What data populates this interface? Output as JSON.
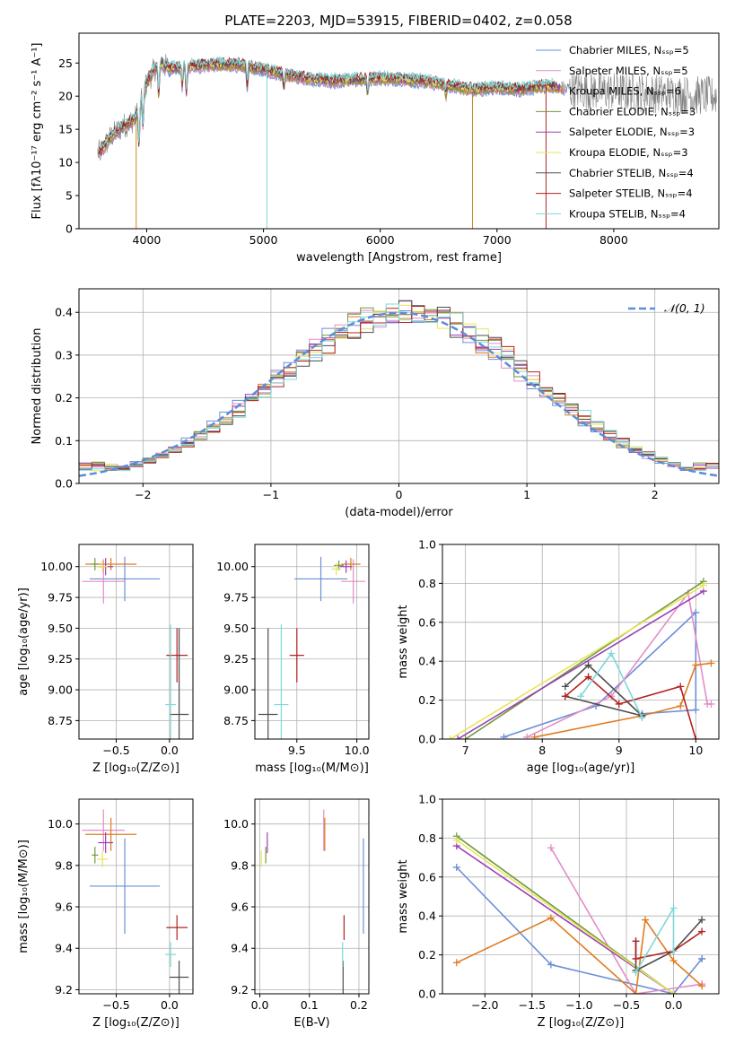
{
  "figure": {
    "title": "PLATE=2203, MJD=53915, FIBERID=0402, z=0.058"
  },
  "chart_data": [
    {
      "id": "spectrum",
      "type": "line",
      "xlabel": "wavelength [Angstrom, rest frame]",
      "ylabel": "Flux [fλ10⁻¹⁷ erg cm⁻² s⁻¹ A⁻¹]",
      "xlim": [
        3420,
        8900
      ],
      "ylim": [
        0,
        29.5
      ],
      "xticks": [
        4000,
        5000,
        6000,
        7000,
        8000
      ],
      "yticks": [
        0,
        5,
        10,
        15,
        20,
        25
      ],
      "grid": false,
      "legend_position": "top-right",
      "legend": [
        {
          "label": "Chabrier MILES, Nₛₛₚ=5",
          "color": "#6a8fd8"
        },
        {
          "label": "Salpeter MILES, Nₛₛₚ=5",
          "color": "#e38dc7"
        },
        {
          "label": "Kroupa MILES, Nₛₛₚ=6",
          "color": "#c58a1d"
        },
        {
          "label": "Chabrier ELODIE, Nₛₛₚ=3",
          "color": "#6f9a3c"
        },
        {
          "label": "Salpeter ELODIE, Nₛₛₚ=3",
          "color": "#9b3fb5"
        },
        {
          "label": "Kroupa ELODIE, Nₛₛₚ=3",
          "color": "#e6e65a"
        },
        {
          "label": "Chabrier STELIB, Nₛₛₚ=4",
          "color": "#4d4d4d"
        },
        {
          "label": "Salpeter STELIB, Nₛₛₚ=4",
          "color": "#b22222"
        },
        {
          "label": "Kroupa STELIB, Nₛₛₚ=4",
          "color": "#7fd8d8"
        }
      ],
      "data_color": "#808080",
      "continuum_knots": {
        "x": [
          3600,
          3700,
          3800,
          3900,
          4000,
          4100,
          4200,
          4400,
          4600,
          4800,
          5000,
          5200,
          5400,
          5600,
          5800,
          6000,
          6200,
          6400,
          6600,
          6800,
          7000,
          7200,
          7400,
          7600
        ],
        "y": [
          11.5,
          14,
          15.5,
          16.5,
          22,
          25,
          24.2,
          24.5,
          24.8,
          24.7,
          24,
          23.2,
          22.6,
          22.3,
          22.5,
          22.7,
          22.5,
          22.2,
          21.6,
          21.0,
          21.3,
          21.0,
          21.6,
          21.2
        ]
      }
    },
    {
      "id": "residual-histogram",
      "type": "line",
      "xlabel": "(data-model)/error",
      "ylabel": "Normed distribution",
      "xlim": [
        -2.5,
        2.5
      ],
      "ylim": [
        0,
        0.455
      ],
      "xticks": [
        -2,
        -1,
        0,
        1,
        2
      ],
      "yticks": [
        0.0,
        0.1,
        0.2,
        0.3,
        0.4
      ],
      "grid": true,
      "legend_position": "top-right",
      "gaussian_label": "𝒩(0, 1)",
      "gaussian_color": "#5b8dd9",
      "bin_width": 0.1,
      "series_colors": [
        "#6a8fd8",
        "#e38dc7",
        "#e07b1f",
        "#6f9a3c",
        "#9b3fb5",
        "#e6e65a",
        "#4d4d4d",
        "#b22222",
        "#7fd8d8"
      ]
    },
    {
      "id": "age-vs-Z",
      "type": "scatter",
      "xlabel": "Z [log₁₀(Z/Z⊙)]",
      "ylabel": "age  [log₁₀(age/yr)]",
      "xlim": [
        -0.85,
        0.22
      ],
      "ylim": [
        8.6,
        10.18
      ],
      "xticks": [
        -0.5,
        0.0
      ],
      "yticks": [
        8.75,
        9.0,
        9.25,
        9.5,
        9.75,
        10.0
      ],
      "grid": true,
      "points": [
        {
          "color": "#6a8fd8",
          "x": -0.42,
          "y": 9.9,
          "xerr": 0.33,
          "yerr": 0.18
        },
        {
          "color": "#e38dc7",
          "x": -0.62,
          "y": 9.88,
          "xerr": 0.2,
          "yerr": 0.18
        },
        {
          "color": "#e07b1f",
          "x": -0.55,
          "y": 10.02,
          "xerr": 0.24,
          "yerr": 0.05
        },
        {
          "color": "#6f9a3c",
          "x": -0.7,
          "y": 10.02,
          "xerr": 0.03,
          "yerr": 0.05
        },
        {
          "color": "#9b3fb5",
          "x": -0.6,
          "y": 10.0,
          "xerr": 0.07,
          "yerr": 0.07
        },
        {
          "color": "#e6e65a",
          "x": -0.63,
          "y": 10.0,
          "xerr": 0.05,
          "yerr": 0.05
        },
        {
          "color": "#4d4d4d",
          "x": 0.09,
          "y": 8.8,
          "xerr": 0.09,
          "yerr": 0.7
        },
        {
          "color": "#b22222",
          "x": 0.07,
          "y": 9.28,
          "xerr": 0.1,
          "yerr": 0.22
        },
        {
          "color": "#7fd8d8",
          "x": 0.01,
          "y": 8.88,
          "xerr": 0.05,
          "yerr": 0.65
        }
      ]
    },
    {
      "id": "age-vs-mass",
      "type": "scatter",
      "xlabel": "mass [log₁₀(M/M⊙)]",
      "ylabel": "",
      "xlim": [
        9.15,
        10.1
      ],
      "ylim": [
        8.6,
        10.18
      ],
      "xticks": [
        9.5,
        10.0
      ],
      "yticks": [
        8.75,
        9.0,
        9.25,
        9.5,
        9.75,
        10.0
      ],
      "grid": true,
      "points": [
        {
          "color": "#6a8fd8",
          "x": 9.7,
          "y": 9.9,
          "xerr": 0.22,
          "yerr": 0.18
        },
        {
          "color": "#e38dc7",
          "x": 9.97,
          "y": 9.88,
          "xerr": 0.1,
          "yerr": 0.18
        },
        {
          "color": "#e07b1f",
          "x": 9.95,
          "y": 10.02,
          "xerr": 0.08,
          "yerr": 0.05
        },
        {
          "color": "#6f9a3c",
          "x": 9.85,
          "y": 10.01,
          "xerr": 0.04,
          "yerr": 0.04
        },
        {
          "color": "#9b3fb5",
          "x": 9.91,
          "y": 10.0,
          "xerr": 0.05,
          "yerr": 0.05
        },
        {
          "color": "#e6e65a",
          "x": 9.83,
          "y": 9.98,
          "xerr": 0.04,
          "yerr": 0.05
        },
        {
          "color": "#4d4d4d",
          "x": 9.26,
          "y": 8.8,
          "xerr": 0.08,
          "yerr": 0.7
        },
        {
          "color": "#b22222",
          "x": 9.5,
          "y": 9.28,
          "xerr": 0.06,
          "yerr": 0.22
        },
        {
          "color": "#7fd8d8",
          "x": 9.37,
          "y": 8.88,
          "xerr": 0.06,
          "yerr": 0.65
        }
      ]
    },
    {
      "id": "mass-weight-vs-age",
      "type": "line",
      "xlabel": "age  [log₁₀(age/yr)]",
      "ylabel": "mass weight",
      "xlim": [
        6.7,
        10.3
      ],
      "ylim": [
        0,
        1.0
      ],
      "xticks": [
        7,
        8,
        9,
        10
      ],
      "yticks": [
        0.0,
        0.2,
        0.4,
        0.6,
        0.8,
        1.0
      ],
      "grid": true,
      "series": [
        {
          "color": "#6a8fd8",
          "x": [
            7.5,
            8.7,
            10.0,
            10.0,
            9.3
          ],
          "y": [
            0.01,
            0.17,
            0.65,
            0.15,
            0.13
          ]
        },
        {
          "color": "#e38dc7",
          "x": [
            7.8,
            8.9,
            9.9,
            10.15,
            10.2
          ],
          "y": [
            0.01,
            0.22,
            0.75,
            0.18,
            0.18
          ]
        },
        {
          "color": "#e07b1f",
          "x": [
            7.9,
            9.3,
            9.8,
            10.0,
            10.2
          ],
          "y": [
            0.01,
            0.12,
            0.17,
            0.38,
            0.39
          ]
        },
        {
          "color": "#6f9a3c",
          "x": [
            7.0,
            10.1
          ],
          "y": [
            0.0,
            0.81
          ]
        },
        {
          "color": "#9b3fb5",
          "x": [
            6.9,
            10.1
          ],
          "y": [
            0.0,
            0.76
          ]
        },
        {
          "color": "#e6e65a",
          "x": [
            6.8,
            10.1
          ],
          "y": [
            0.0,
            0.79
          ]
        },
        {
          "color": "#4d4d4d",
          "x": [
            8.3,
            8.6,
            9.3,
            9.3,
            8.3
          ],
          "y": [
            0.27,
            0.38,
            0.12,
            0.12,
            0.22
          ]
        },
        {
          "color": "#b22222",
          "x": [
            8.3,
            8.6,
            9.0,
            9.8,
            10.0
          ],
          "y": [
            0.22,
            0.32,
            0.18,
            0.27,
            0.0
          ]
        },
        {
          "color": "#7fd8d8",
          "x": [
            8.5,
            8.9,
            9.3
          ],
          "y": [
            0.22,
            0.44,
            0.11
          ]
        }
      ]
    },
    {
      "id": "mass-vs-Z",
      "type": "scatter",
      "xlabel": "Z [log₁₀(Z/Z⊙)]",
      "ylabel": "mass [log₁₀(M/M⊙)]",
      "xlim": [
        -0.85,
        0.22
      ],
      "ylim": [
        9.18,
        10.12
      ],
      "xticks": [
        -0.5,
        0.0
      ],
      "yticks": [
        9.2,
        9.4,
        9.6,
        9.8,
        10.0
      ],
      "grid": true,
      "points": [
        {
          "color": "#6a8fd8",
          "x": -0.42,
          "y": 9.7,
          "xerr": 0.33,
          "yerr": 0.23
        },
        {
          "color": "#e38dc7",
          "x": -0.62,
          "y": 9.97,
          "xerr": 0.2,
          "yerr": 0.1
        },
        {
          "color": "#e07b1f",
          "x": -0.55,
          "y": 9.95,
          "xerr": 0.24,
          "yerr": 0.08
        },
        {
          "color": "#6f9a3c",
          "x": -0.7,
          "y": 9.85,
          "xerr": 0.03,
          "yerr": 0.04
        },
        {
          "color": "#9b3fb5",
          "x": -0.6,
          "y": 9.91,
          "xerr": 0.07,
          "yerr": 0.05
        },
        {
          "color": "#e6e65a",
          "x": -0.63,
          "y": 9.83,
          "xerr": 0.05,
          "yerr": 0.04
        },
        {
          "color": "#4d4d4d",
          "x": 0.09,
          "y": 9.26,
          "xerr": 0.09,
          "yerr": 0.08
        },
        {
          "color": "#b22222",
          "x": 0.07,
          "y": 9.5,
          "xerr": 0.1,
          "yerr": 0.06
        },
        {
          "color": "#7fd8d8",
          "x": 0.01,
          "y": 9.37,
          "xerr": 0.05,
          "yerr": 0.06
        }
      ]
    },
    {
      "id": "mass-vs-ebv",
      "type": "scatter",
      "xlabel": "E(B-V)",
      "ylabel": "",
      "xlim": [
        -0.01,
        0.22
      ],
      "ylim": [
        9.18,
        10.12
      ],
      "xticks": [
        0.0,
        0.1,
        0.2
      ],
      "yticks": [
        9.2,
        9.4,
        9.6,
        9.8,
        10.0
      ],
      "grid": true,
      "points": [
        {
          "color": "#6a8fd8",
          "x": 0.209,
          "y": 9.7,
          "xerr": 0.0,
          "yerr": 0.23
        },
        {
          "color": "#e38dc7",
          "x": 0.129,
          "y": 9.97,
          "xerr": 0.0,
          "yerr": 0.1
        },
        {
          "color": "#e07b1f",
          "x": 0.131,
          "y": 9.95,
          "xerr": 0.0,
          "yerr": 0.08
        },
        {
          "color": "#6f9a3c",
          "x": 0.012,
          "y": 9.85,
          "xerr": 0.0,
          "yerr": 0.04
        },
        {
          "color": "#9b3fb5",
          "x": 0.015,
          "y": 9.91,
          "xerr": 0.0,
          "yerr": 0.05
        },
        {
          "color": "#e6e65a",
          "x": 0.003,
          "y": 9.83,
          "xerr": 0.0,
          "yerr": 0.04
        },
        {
          "color": "#4d4d4d",
          "x": 0.168,
          "y": 9.26,
          "xerr": 0.0,
          "yerr": 0.08
        },
        {
          "color": "#b22222",
          "x": 0.17,
          "y": 9.5,
          "xerr": 0.0,
          "yerr": 0.06
        },
        {
          "color": "#7fd8d8",
          "x": 0.167,
          "y": 9.37,
          "xerr": 0.0,
          "yerr": 0.06
        }
      ]
    },
    {
      "id": "mass-weight-vs-Z",
      "type": "line",
      "xlabel": "Z [log₁₀(Z/Z⊙)]",
      "ylabel": "mass weight",
      "xlim": [
        -2.45,
        0.48
      ],
      "ylim": [
        0,
        1.0
      ],
      "xticks": [
        -2.0,
        -1.5,
        -1.0,
        -0.5,
        0.0
      ],
      "yticks": [
        0.0,
        0.2,
        0.4,
        0.6,
        0.8,
        1.0
      ],
      "grid": true,
      "series": [
        {
          "color": "#6a8fd8",
          "x": [
            -2.3,
            -1.3,
            0.0,
            0.3,
            0.3
          ],
          "y": [
            0.65,
            0.15,
            0.0,
            0.18,
            0.18
          ]
        },
        {
          "color": "#e38dc7",
          "x": [
            -1.3,
            -0.4,
            0.3,
            0.3
          ],
          "y": [
            0.75,
            0.0,
            0.05,
            0.05
          ]
        },
        {
          "color": "#e07b1f",
          "x": [
            -2.3,
            -1.3,
            -0.4,
            -0.3,
            0.0,
            0.3
          ],
          "y": [
            0.16,
            0.39,
            0.0,
            0.38,
            0.17,
            0.04
          ]
        },
        {
          "color": "#6f9a3c",
          "x": [
            -2.3,
            0.0
          ],
          "y": [
            0.81,
            0.0
          ]
        },
        {
          "color": "#9b3fb5",
          "x": [
            -2.3,
            0.0
          ],
          "y": [
            0.76,
            0.0
          ]
        },
        {
          "color": "#e6e65a",
          "x": [
            -2.3,
            0.0
          ],
          "y": [
            0.79,
            0.0
          ]
        },
        {
          "color": "#4d4d4d",
          "x": [
            -0.4,
            -0.4,
            0.0,
            0.3
          ],
          "y": [
            0.27,
            0.12,
            0.22,
            0.38
          ]
        },
        {
          "color": "#b22222",
          "x": [
            -0.4,
            -0.4,
            0.0,
            0.3
          ],
          "y": [
            0.27,
            0.18,
            0.22,
            0.32
          ]
        },
        {
          "color": "#7fd8d8",
          "x": [
            -0.4,
            0.0,
            0.0
          ],
          "y": [
            0.11,
            0.44,
            0.22
          ]
        }
      ]
    }
  ]
}
